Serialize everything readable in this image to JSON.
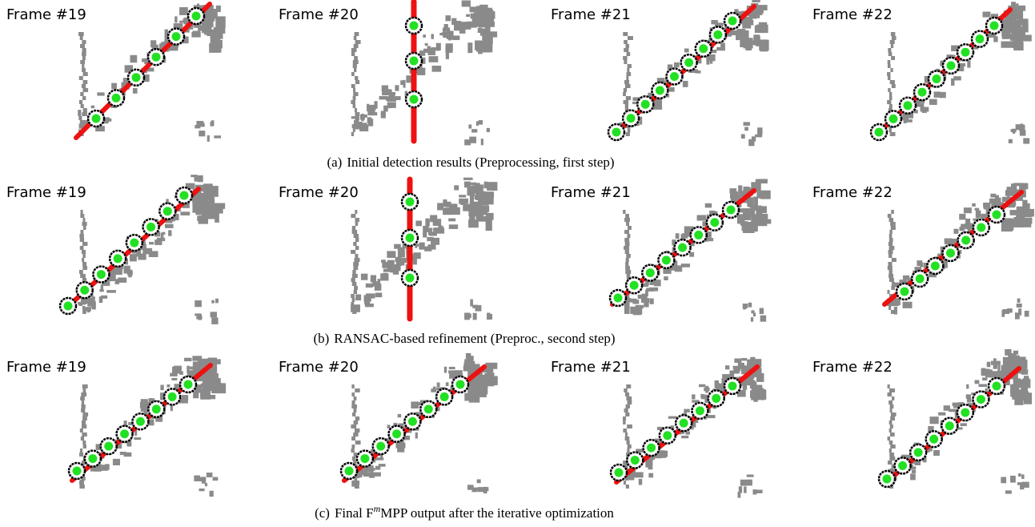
{
  "rows": [
    {
      "panels": [
        {
          "label": "Frame #19"
        },
        {
          "label": "Frame #20"
        },
        {
          "label": "Frame #21"
        },
        {
          "label": "Frame #22"
        }
      ],
      "caption": {
        "label": "(a)",
        "text": "Initial detection results (Preprocessing, first step)"
      }
    },
    {
      "panels": [
        {
          "label": "Frame #19"
        },
        {
          "label": "Frame #20"
        },
        {
          "label": "Frame #21"
        },
        {
          "label": "Frame #22"
        }
      ],
      "caption": {
        "label": "(b)",
        "text": "RANSAC-based refinement (Preproc., second step)"
      }
    },
    {
      "panels": [
        {
          "label": "Frame #19"
        },
        {
          "label": "Frame #20"
        },
        {
          "label": "Frame #21"
        },
        {
          "label": "Frame #22"
        }
      ],
      "caption": {
        "label": "(c)",
        "text": "Final F",
        "superscript": "m",
        "text_after": "MPP output after the iterative optimization"
      }
    }
  ]
}
